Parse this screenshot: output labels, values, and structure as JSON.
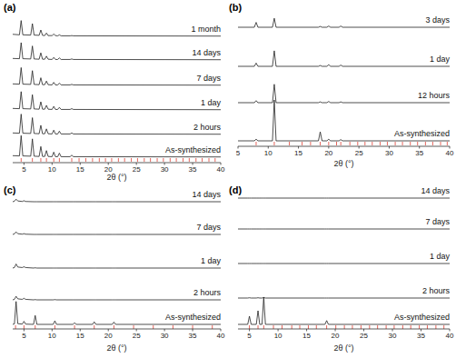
{
  "chart_data": [
    {
      "type": "line",
      "title": "(a)",
      "x_label": "2θ (°)",
      "tick_labels": "x",
      "grid": false,
      "xlim": [
        3,
        40
      ],
      "xticks": [
        5,
        10,
        15,
        20,
        25,
        30,
        35,
        40
      ],
      "ylim": [
        0,
        100
      ],
      "x": [
        3,
        4.2,
        4.5,
        4.8,
        6.2,
        6.5,
        6.8,
        7.7,
        8,
        8.3,
        8.7,
        9,
        9.3,
        10,
        10.3,
        10.6,
        11,
        11.3,
        11.6,
        13.2,
        13.5,
        13.8,
        40
      ],
      "series": [
        {
          "name": "1 month",
          "color": "#222222",
          "values": [
            8,
            6,
            62,
            6,
            5,
            50,
            5,
            4,
            25,
            4,
            3,
            13,
            3,
            3,
            9,
            3,
            2,
            6,
            2,
            2,
            3,
            2,
            1
          ]
        },
        {
          "name": "14 days",
          "color": "#222222",
          "values": [
            6,
            5,
            68,
            5,
            4,
            55,
            4,
            3,
            28,
            3,
            3,
            15,
            3,
            2,
            10,
            2,
            2,
            8,
            2,
            2,
            4,
            2,
            1
          ]
        },
        {
          "name": "7 days",
          "color": "#222222",
          "values": [
            6,
            5,
            70,
            5,
            4,
            58,
            4,
            3,
            30,
            3,
            3,
            17,
            3,
            2,
            12,
            2,
            2,
            9,
            2,
            2,
            4,
            2,
            1
          ]
        },
        {
          "name": "1 day",
          "color": "#222222",
          "values": [
            6,
            5,
            72,
            5,
            4,
            60,
            4,
            3,
            32,
            3,
            3,
            18,
            3,
            2,
            14,
            2,
            2,
            10,
            2,
            2,
            5,
            2,
            1
          ]
        },
        {
          "name": "2 hours",
          "color": "#222222",
          "values": [
            6,
            5,
            80,
            5,
            4,
            66,
            4,
            3,
            36,
            3,
            3,
            22,
            3,
            2,
            17,
            2,
            2,
            13,
            2,
            2,
            6,
            2,
            1
          ]
        },
        {
          "name": "As-synthesized",
          "color": "#222222",
          "values": [
            6,
            5,
            85,
            5,
            4,
            72,
            4,
            3,
            42,
            3,
            3,
            26,
            3,
            2,
            20,
            2,
            2,
            16,
            2,
            2,
            8,
            2,
            1
          ]
        }
      ],
      "reference_peaks": [
        4.5,
        6.5,
        8,
        9,
        10.3,
        11.3,
        13.5,
        14.8,
        16,
        17.2,
        18.4,
        19.5,
        20.6,
        21.8,
        22.9,
        24.1,
        25.2,
        26.4,
        27.5,
        28.7,
        29.8,
        31,
        32.1,
        33.3,
        34.4,
        35.6,
        36.7,
        37.9,
        39
      ]
    },
    {
      "type": "line",
      "title": "(b)",
      "x_label": "2θ (°)",
      "tick_labels": "x",
      "grid": false,
      "xlim": [
        5,
        40
      ],
      "xticks": [
        5,
        10,
        15,
        20,
        25,
        30,
        35,
        40
      ],
      "ylim": [
        0,
        100
      ],
      "x": [
        5,
        7.7,
        8,
        8.3,
        10.7,
        11,
        11.3,
        18.3,
        18.6,
        18.9,
        19.7,
        20,
        20.3,
        21.7,
        22,
        22.3,
        40
      ],
      "series": [
        {
          "name": "3 days",
          "color": "#222222",
          "values": [
            0,
            0,
            12,
            0,
            0,
            22,
            0,
            0,
            2,
            0,
            0,
            3,
            0,
            0,
            3,
            0,
            0
          ]
        },
        {
          "name": "1 day",
          "color": "#222222",
          "values": [
            0,
            0,
            8,
            0,
            0,
            38,
            0,
            0,
            2,
            0,
            0,
            4,
            0,
            0,
            3,
            0,
            0
          ]
        },
        {
          "name": "12 hours",
          "color": "#222222",
          "values": [
            0,
            0,
            5,
            0,
            0,
            45,
            0,
            0,
            2,
            0,
            0,
            3,
            0,
            0,
            2,
            0,
            0
          ]
        },
        {
          "name": "As-synthesized",
          "color": "#222222",
          "values": [
            0,
            0,
            4,
            0,
            0,
            100,
            0,
            0,
            22,
            0,
            0,
            4,
            0,
            0,
            3,
            0,
            0
          ]
        }
      ],
      "reference_peaks": [
        8,
        11,
        13.5,
        15.6,
        17,
        18.6,
        20,
        21.3,
        22,
        23.5,
        24.8,
        26,
        27.2,
        28.5,
        29.7,
        31,
        32.2,
        33.5,
        34.7,
        36,
        37.2,
        38.5,
        39.6
      ]
    },
    {
      "type": "line",
      "title": "(c)",
      "x_label": "2θ (°)",
      "tick_labels": "x",
      "grid": false,
      "xlim": [
        3,
        40
      ],
      "xticks": [
        5,
        10,
        15,
        20,
        25,
        30,
        35,
        40
      ],
      "ylim": [
        0,
        100
      ],
      "x": [
        3,
        3.3,
        3.6,
        3.9,
        4.7,
        5,
        5.3,
        6.7,
        7,
        7.3,
        10.2,
        10.5,
        10.8,
        13.7,
        14,
        14.3,
        17.2,
        17.5,
        17.8,
        20.7,
        21,
        21.3,
        40
      ],
      "series": [
        {
          "name": "14 days",
          "color": "#222222",
          "values": [
            0,
            2,
            10,
            3,
            1,
            4,
            1,
            0,
            0,
            0,
            0,
            0,
            0,
            0,
            0,
            0,
            0,
            0,
            0,
            0,
            0,
            0,
            0
          ]
        },
        {
          "name": "7 days",
          "color": "#222222",
          "values": [
            0,
            2,
            10,
            3,
            1,
            3,
            1,
            0,
            0,
            0,
            0,
            0,
            0,
            0,
            0,
            0,
            0,
            0,
            0,
            0,
            0,
            0,
            0
          ]
        },
        {
          "name": "1 day",
          "color": "#222222",
          "values": [
            0,
            2,
            16,
            4,
            2,
            5,
            2,
            0,
            1,
            0,
            0,
            0,
            0,
            0,
            0,
            0,
            0,
            0,
            0,
            0,
            0,
            0,
            0
          ]
        },
        {
          "name": "2 hours",
          "color": "#222222",
          "values": [
            0,
            2,
            14,
            4,
            2,
            6,
            2,
            0,
            1,
            0,
            0,
            1,
            0,
            0,
            0,
            0,
            0,
            0,
            0,
            0,
            0,
            0,
            0
          ]
        },
        {
          "name": "As-synthesized",
          "color": "#222222",
          "values": [
            0,
            2,
            90,
            3,
            1,
            12,
            1,
            0,
            35,
            0,
            0,
            14,
            0,
            0,
            6,
            0,
            0,
            10,
            0,
            0,
            9,
            0,
            0
          ]
        }
      ],
      "reference_peaks": [
        3.5,
        5,
        7,
        10.5,
        14,
        17.5,
        21,
        24.5,
        28,
        31.5,
        35,
        38.5
      ]
    },
    {
      "type": "line",
      "title": "(d)",
      "x_label": "2θ (°)",
      "tick_labels": "x",
      "grid": false,
      "xlim": [
        3,
        40
      ],
      "xticks": [
        5,
        10,
        15,
        20,
        25,
        30,
        35,
        40
      ],
      "ylim": [
        0,
        100
      ],
      "x": [
        3,
        4.7,
        5,
        5.3,
        6.2,
        6.5,
        6.8,
        7.2,
        7.5,
        7.8,
        18.2,
        18.5,
        18.8,
        40
      ],
      "series": [
        {
          "name": "14 days",
          "color": "#222222",
          "values": [
            0,
            0,
            0,
            0,
            0,
            0,
            0,
            0,
            0,
            0,
            0,
            0,
            0,
            0
          ]
        },
        {
          "name": "7 days",
          "color": "#222222",
          "values": [
            0,
            0,
            0,
            0,
            0,
            0,
            0,
            0,
            0,
            0,
            0,
            0,
            0,
            0
          ]
        },
        {
          "name": "1 day",
          "color": "#222222",
          "values": [
            0,
            0,
            0,
            0,
            0,
            0,
            0,
            0,
            0,
            0,
            0,
            0,
            0,
            0
          ]
        },
        {
          "name": "2 hours",
          "color": "#222222",
          "values": [
            0,
            0,
            1,
            0,
            0,
            1,
            0,
            0,
            2,
            0,
            0,
            0,
            0,
            0
          ]
        },
        {
          "name": "As-synthesized",
          "color": "#222222",
          "values": [
            0,
            0,
            30,
            0,
            0,
            50,
            0,
            0,
            100,
            0,
            0,
            14,
            0,
            0
          ]
        }
      ],
      "reference_peaks": [
        5,
        6.5,
        7.5,
        9.2,
        10.7,
        12.4,
        13.8,
        15.3,
        16.7,
        18.5,
        20.1,
        21.6,
        23,
        24.5,
        26,
        27.4,
        28.9,
        30.3,
        31.8,
        33.2,
        34.7,
        36.1,
        37.6,
        39
      ]
    }
  ]
}
